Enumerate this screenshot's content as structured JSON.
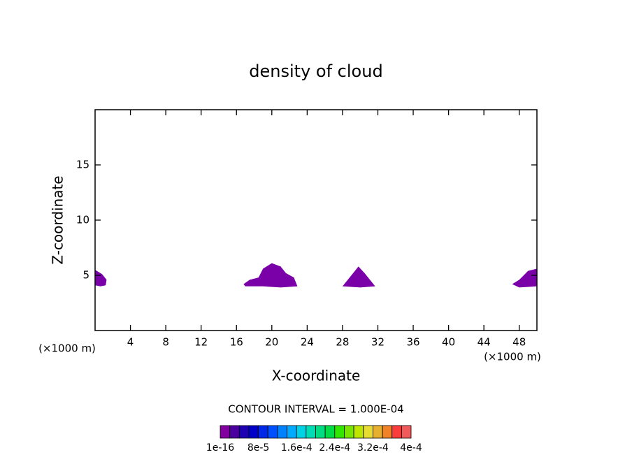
{
  "chart_data": {
    "type": "contour",
    "title": "density of cloud",
    "x_label": "X-coordinate",
    "y_label": "Z-coordinate",
    "x_unit": "(×1000 m)",
    "y_unit": "(×1000 m)",
    "xlim": [
      0,
      50
    ],
    "ylim": [
      0,
      20
    ],
    "xticks": [
      4,
      8,
      12,
      16,
      20,
      24,
      28,
      32,
      36,
      40,
      44,
      48
    ],
    "yticks": [
      5,
      10,
      15
    ],
    "cloud_color": "#7a00a8",
    "cloud_regions": [
      {
        "x": [
          0,
          0.8,
          1.3,
          1.2,
          0.6,
          0
        ],
        "z": [
          5.5,
          5.1,
          4.6,
          4.1,
          4.0,
          4.1
        ]
      },
      {
        "x": [
          16.8,
          17.5,
          18.5,
          19.0,
          20.0,
          21.0,
          21.6,
          22.5,
          22.9,
          21.0,
          19.0,
          17.0
        ],
        "z": [
          4.2,
          4.6,
          4.8,
          5.6,
          6.1,
          5.8,
          5.2,
          4.8,
          4.0,
          3.9,
          4.0,
          4.0
        ]
      },
      {
        "x": [
          28.0,
          29.2,
          29.8,
          30.5,
          31.7,
          30.0
        ],
        "z": [
          4.0,
          5.2,
          5.8,
          5.2,
          4.0,
          3.9
        ]
      },
      {
        "x": [
          47.2,
          48.0,
          49.0,
          50.0,
          50.0,
          48.0
        ],
        "z": [
          4.2,
          4.6,
          5.4,
          5.6,
          4.0,
          3.9
        ]
      }
    ],
    "contour_interval_label": "CONTOUR INTERVAL = 1.000E-04",
    "colorbar_colors": [
      "#8200a0",
      "#4b00a0",
      "#1e00b4",
      "#0000c8",
      "#0028e6",
      "#0050ff",
      "#0082ff",
      "#00aaff",
      "#00d2e6",
      "#00dcb4",
      "#00dc82",
      "#00dc46",
      "#32e600",
      "#78e600",
      "#bee600",
      "#e6dc32",
      "#e6af2d",
      "#f08228",
      "#fa3c3c",
      "#f05a5a"
    ],
    "colorbar_ticks": [
      1e-16,
      {
        "value": 8e-05,
        "label": "8e-5"
      },
      {
        "value": 0.00016,
        "label": "1.6e-4"
      },
      {
        "value": 0.00024,
        "label": "2.4e-4"
      },
      {
        "value": 0.00032,
        "label": "3.2e-4"
      },
      {
        "value": 0.0004,
        "label": "4e-4"
      }
    ],
    "colorbar_lim": [
      1e-16,
      0.0004
    ]
  }
}
